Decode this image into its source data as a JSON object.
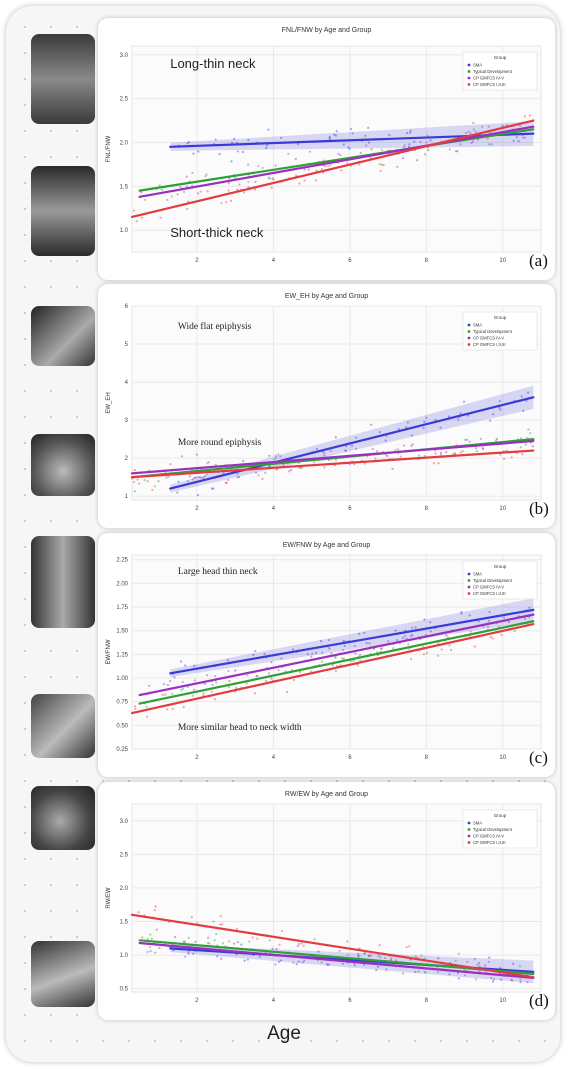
{
  "chart_data": [
    {
      "type": "scatter",
      "panel_label": "(a)",
      "title": "FNL/FNW by Age and Group",
      "ylabel": "FNL/FNW",
      "xlim": [
        0.3,
        11.0
      ],
      "ylim": [
        0.75,
        3.1
      ],
      "xticks": [
        2,
        4,
        6,
        8,
        10
      ],
      "yticks": [
        1.0,
        1.5,
        2.0,
        2.5,
        3.0
      ],
      "ytick_labels": [
        "1.0",
        "1.5",
        "2.0",
        "2.5",
        "3.0"
      ],
      "annotations": [
        {
          "text": "Long-thin neck",
          "x": 1.3,
          "y": 2.85
        },
        {
          "text": "Short-thick neck",
          "x": 1.3,
          "y": 0.92
        }
      ],
      "legend": {
        "title": "Group",
        "position": "top-right"
      },
      "series": [
        {
          "name": "SMA",
          "color": "#3a3ad8",
          "line": [
            [
              1.3,
              1.95
            ],
            [
              10.8,
              2.1
            ]
          ]
        },
        {
          "name": "Typical Development",
          "color": "#2fa035",
          "line": [
            [
              0.5,
              1.45
            ],
            [
              10.8,
              2.15
            ]
          ]
        },
        {
          "name": "CP GMFCS IV-V",
          "color": "#9a2fc0",
          "line": [
            [
              0.5,
              1.38
            ],
            [
              10.8,
              2.18
            ]
          ]
        },
        {
          "name": "CP GMFCS I,II,III",
          "color": "#e33b40",
          "line": [
            [
              0.3,
              1.15
            ],
            [
              10.8,
              2.25
            ]
          ]
        }
      ]
    },
    {
      "type": "scatter",
      "panel_label": "(b)",
      "title": "EW_EH by Age and Group",
      "ylabel": "EW_EH",
      "xlim": [
        0.3,
        11.0
      ],
      "ylim": [
        0.9,
        6.0
      ],
      "xticks": [
        2,
        4,
        6,
        8,
        10
      ],
      "yticks": [
        1,
        2,
        3,
        4,
        5,
        6
      ],
      "ytick_labels": [
        "1",
        "2",
        "3",
        "4",
        "5",
        "6"
      ],
      "annotations": [
        {
          "text": "Wide flat epiphysis",
          "x": 1.5,
          "y": 5.4
        },
        {
          "text": "More round epiphysis",
          "x": 1.5,
          "y": 2.35
        }
      ],
      "legend": {
        "title": "Group",
        "position": "top-right"
      },
      "series": [
        {
          "name": "SMA",
          "color": "#3a3ad8",
          "line": [
            [
              1.3,
              1.2
            ],
            [
              10.8,
              3.6
            ]
          ]
        },
        {
          "name": "Typical Development",
          "color": "#2fa035",
          "line": [
            [
              0.3,
              1.5
            ],
            [
              10.8,
              2.5
            ]
          ]
        },
        {
          "name": "CP GMFCS IV-V",
          "color": "#9a2fc0",
          "line": [
            [
              0.3,
              1.6
            ],
            [
              10.8,
              2.45
            ]
          ]
        },
        {
          "name": "CP GMFCS I,II,III",
          "color": "#e33b40",
          "line": [
            [
              0.3,
              1.5
            ],
            [
              10.8,
              2.2
            ]
          ]
        }
      ]
    },
    {
      "type": "scatter",
      "panel_label": "(c)",
      "title": "EW/FNW by Age and Group",
      "ylabel": "EW/FNW",
      "xlim": [
        0.3,
        11.0
      ],
      "ylim": [
        0.25,
        2.3
      ],
      "xticks": [
        2,
        4,
        6,
        8,
        10
      ],
      "yticks": [
        0.25,
        0.5,
        0.75,
        1.0,
        1.25,
        1.5,
        1.75,
        2.0,
        2.25
      ],
      "ytick_labels": [
        "0.25",
        "0.50",
        "0.75",
        "1.00",
        "1.25",
        "1.50",
        "1.75",
        "2.00",
        "2.25"
      ],
      "annotations": [
        {
          "text": "Large head thin neck",
          "x": 1.5,
          "y": 2.1
        },
        {
          "text": "More similar head to neck width",
          "x": 1.5,
          "y": 0.45
        }
      ],
      "legend": {
        "title": "Group",
        "position": "top-right"
      },
      "series": [
        {
          "name": "SMA",
          "color": "#3a3ad8",
          "line": [
            [
              1.3,
              1.05
            ],
            [
              10.8,
              1.72
            ]
          ]
        },
        {
          "name": "Typical Development",
          "color": "#2fa035",
          "line": [
            [
              0.5,
              0.73
            ],
            [
              10.8,
              1.6
            ]
          ]
        },
        {
          "name": "CP GMFCS IV-V",
          "color": "#9a2fc0",
          "line": [
            [
              0.5,
              0.82
            ],
            [
              10.8,
              1.67
            ]
          ]
        },
        {
          "name": "CP GMFCS I,II,III",
          "color": "#e33b40",
          "line": [
            [
              0.3,
              0.63
            ],
            [
              10.8,
              1.57
            ]
          ]
        }
      ]
    },
    {
      "type": "scatter",
      "panel_label": "(d)",
      "title": "RW/EW by Age and Group",
      "ylabel": "RW/EW",
      "xlim": [
        0.3,
        11.0
      ],
      "ylim": [
        0.45,
        3.25
      ],
      "xticks": [
        2,
        4,
        6,
        8,
        10
      ],
      "yticks": [
        0.5,
        1.0,
        1.5,
        2.0,
        2.5,
        3.0
      ],
      "ytick_labels": [
        "0.5",
        "1.0",
        "1.5",
        "2.0",
        "2.5",
        "3.0"
      ],
      "annotations": [],
      "legend": {
        "title": "Group",
        "position": "top-right"
      },
      "series": [
        {
          "name": "SMA",
          "color": "#3a3ad8",
          "line": [
            [
              1.3,
              1.1
            ],
            [
              10.8,
              0.75
            ]
          ]
        },
        {
          "name": "Typical Development",
          "color": "#2fa035",
          "line": [
            [
              0.5,
              1.22
            ],
            [
              10.8,
              0.72
            ]
          ]
        },
        {
          "name": "CP GMFCS IV-V",
          "color": "#9a2fc0",
          "line": [
            [
              0.5,
              1.18
            ],
            [
              10.8,
              0.66
            ]
          ]
        },
        {
          "name": "CP GMFCS I,II,III",
          "color": "#e33b40",
          "line": [
            [
              0.3,
              1.6
            ],
            [
              10.8,
              0.67
            ]
          ]
        }
      ]
    }
  ],
  "shared_xlabel": "Age"
}
